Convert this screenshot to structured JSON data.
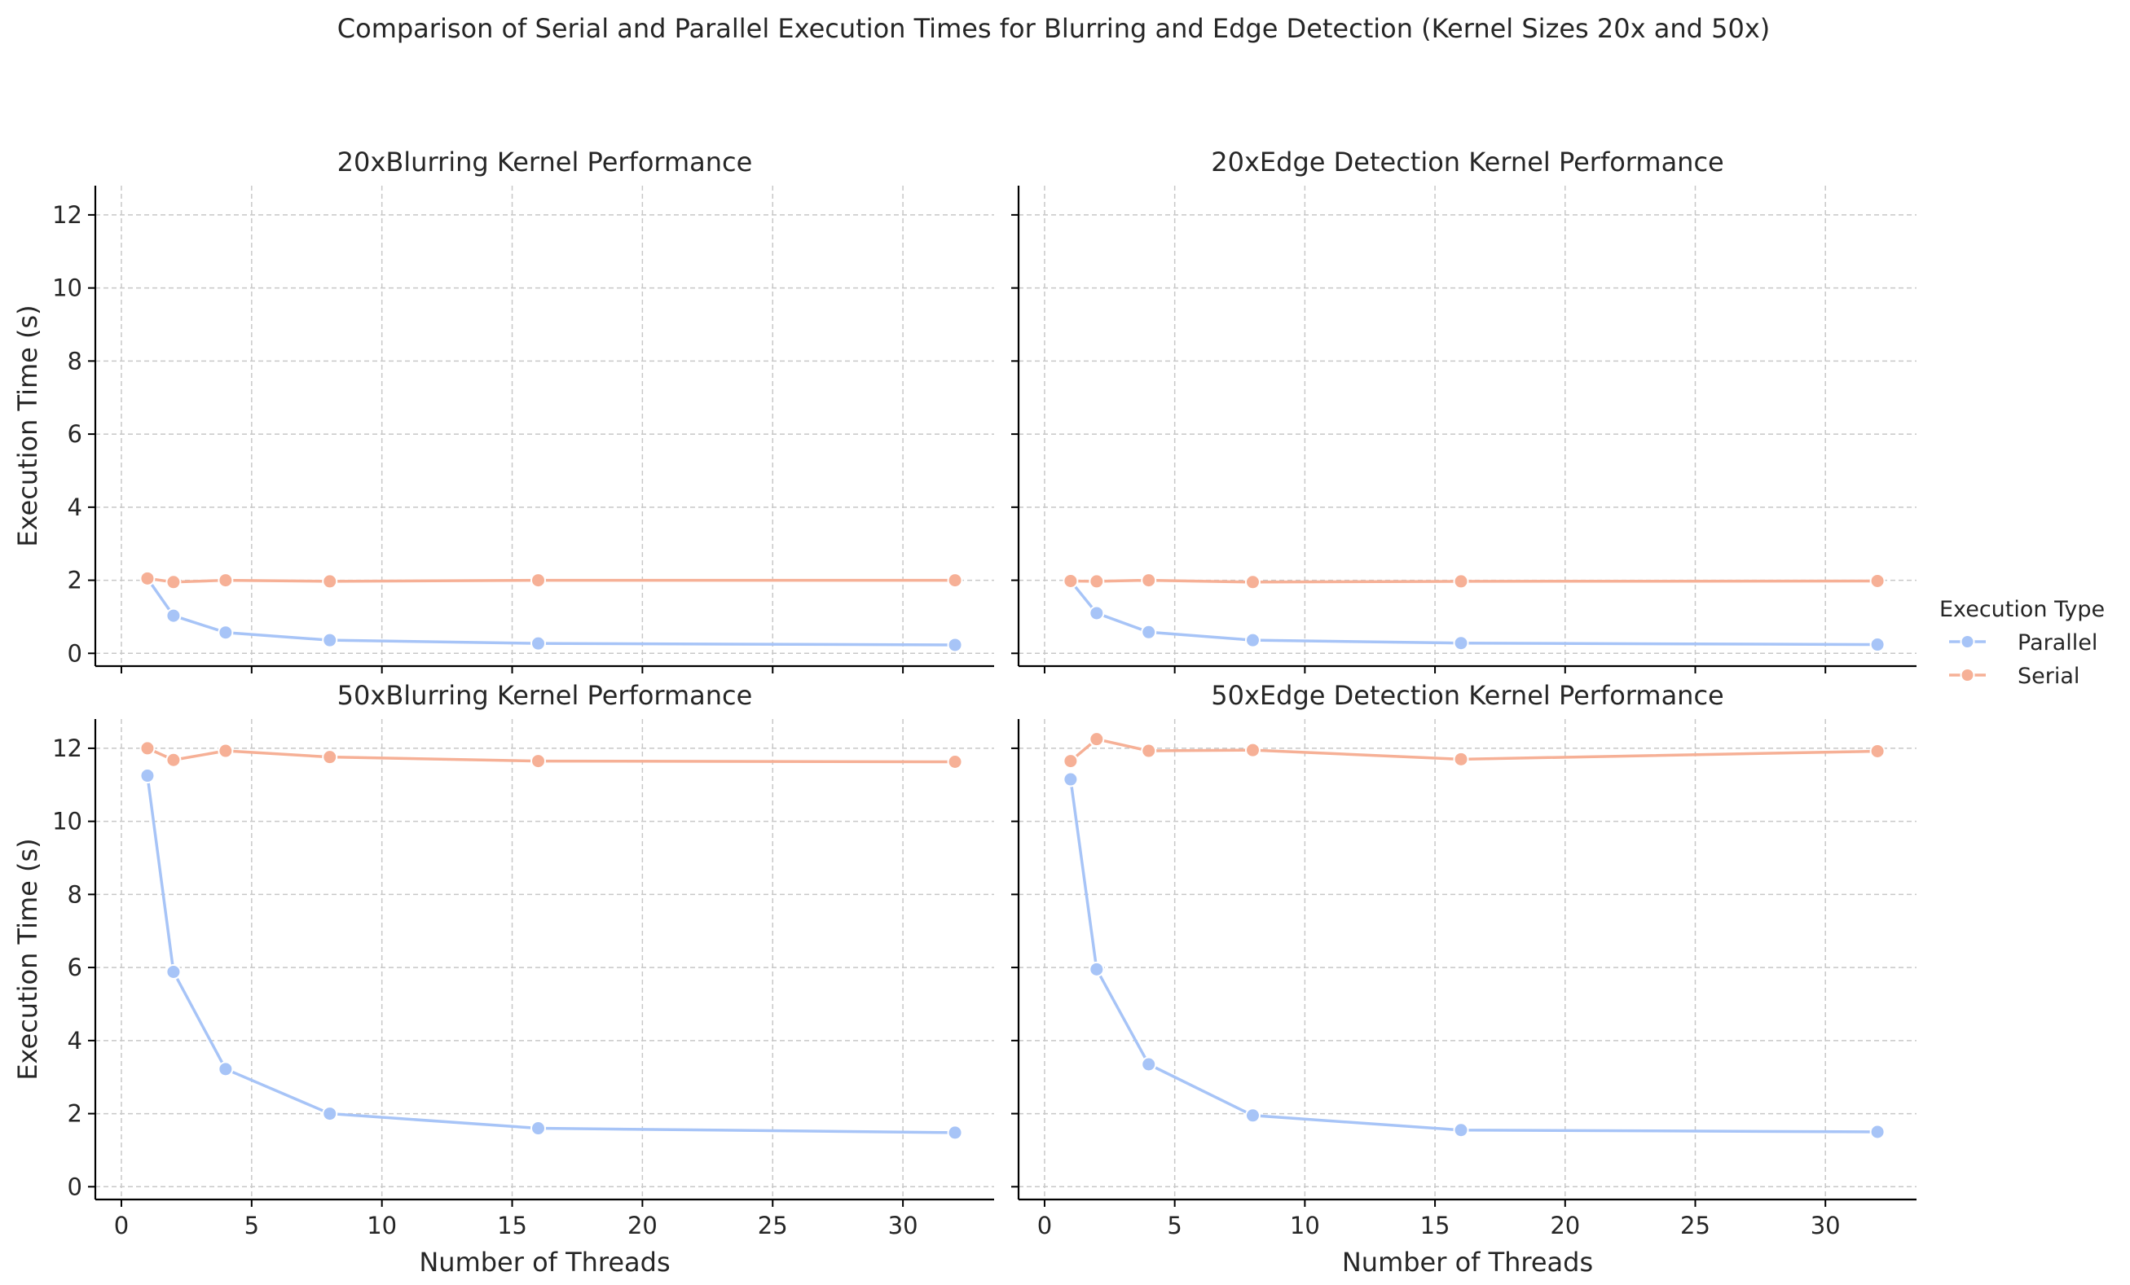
{
  "figure_title": "Comparison of Serial and Parallel Execution Times for Blurring and Edge Detection (Kernel Sizes 20x and 50x)",
  "legend": {
    "title": "Execution Type",
    "entries": [
      {
        "label": "Parallel",
        "color": "#a7c4f7"
      },
      {
        "label": "Serial",
        "color": "#f6b096"
      }
    ]
  },
  "colors": {
    "parallel": "#a7c4f7",
    "serial": "#f6b096"
  },
  "chart_data": [
    {
      "type": "line",
      "title": "20xBlurring Kernel Performance",
      "xlabel": "",
      "ylabel": "Execution Time (s)",
      "xlim": [
        -1,
        33.5
      ],
      "ylim": [
        -0.35,
        12.8
      ],
      "xticks": [
        "0",
        "5",
        "10",
        "15",
        "20",
        "25",
        "30"
      ],
      "yticks": [
        "0",
        "2",
        "4",
        "6",
        "8",
        "10",
        "12"
      ],
      "grid": true,
      "x": [
        1,
        2,
        4,
        8,
        16,
        32
      ],
      "series": [
        {
          "name": "Parallel",
          "values": [
            2.05,
            1.03,
            0.57,
            0.36,
            0.27,
            0.23
          ]
        },
        {
          "name": "Serial",
          "values": [
            2.05,
            1.95,
            2.0,
            1.97,
            2.0,
            2.0
          ]
        }
      ]
    },
    {
      "type": "line",
      "title": "20xEdge Detection Kernel Performance",
      "xlabel": "",
      "ylabel": "",
      "xlim": [
        -1,
        33.5
      ],
      "ylim": [
        -0.35,
        12.8
      ],
      "xticks": [
        "0",
        "5",
        "10",
        "15",
        "20",
        "25",
        "30"
      ],
      "yticks": [
        "0",
        "2",
        "4",
        "6",
        "8",
        "10",
        "12"
      ],
      "grid": true,
      "x": [
        1,
        2,
        4,
        8,
        16,
        32
      ],
      "series": [
        {
          "name": "Parallel",
          "values": [
            1.98,
            1.1,
            0.58,
            0.36,
            0.28,
            0.24
          ]
        },
        {
          "name": "Serial",
          "values": [
            1.98,
            1.97,
            2.0,
            1.95,
            1.97,
            1.98
          ]
        }
      ]
    },
    {
      "type": "line",
      "title": "50xBlurring Kernel Performance",
      "xlabel": "Number of Threads",
      "ylabel": "Execution Time (s)",
      "xlim": [
        -1,
        33.5
      ],
      "ylim": [
        -0.35,
        12.8
      ],
      "xticks": [
        "0",
        "5",
        "10",
        "15",
        "20",
        "25",
        "30"
      ],
      "yticks": [
        "0",
        "2",
        "4",
        "6",
        "8",
        "10",
        "12"
      ],
      "grid": true,
      "x": [
        1,
        2,
        4,
        8,
        16,
        32
      ],
      "series": [
        {
          "name": "Parallel",
          "values": [
            11.25,
            5.88,
            3.22,
            2.0,
            1.6,
            1.48
          ]
        },
        {
          "name": "Serial",
          "values": [
            12.0,
            11.68,
            11.93,
            11.76,
            11.65,
            11.63
          ]
        }
      ]
    },
    {
      "type": "line",
      "title": "50xEdge Detection Kernel Performance",
      "xlabel": "Number of Threads",
      "ylabel": "",
      "xlim": [
        -1,
        33.5
      ],
      "ylim": [
        -0.35,
        12.8
      ],
      "xticks": [
        "0",
        "5",
        "10",
        "15",
        "20",
        "25",
        "30"
      ],
      "yticks": [
        "0",
        "2",
        "4",
        "6",
        "8",
        "10",
        "12"
      ],
      "grid": true,
      "x": [
        1,
        2,
        4,
        8,
        16,
        32
      ],
      "series": [
        {
          "name": "Parallel",
          "values": [
            11.15,
            5.95,
            3.35,
            1.95,
            1.55,
            1.5
          ]
        },
        {
          "name": "Serial",
          "values": [
            11.65,
            12.25,
            11.93,
            11.95,
            11.7,
            11.92
          ]
        }
      ]
    }
  ]
}
